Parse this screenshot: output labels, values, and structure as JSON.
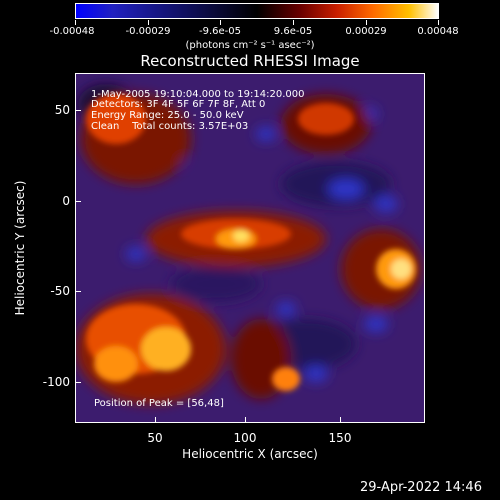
{
  "colorbar": {
    "ticks": [
      "-0.00048",
      "-0.00029",
      "-9.6e-05",
      "9.6e-05",
      "0.00029",
      "0.00048"
    ],
    "units": "(photons cm⁻² s⁻¹ asec⁻²)"
  },
  "plot": {
    "title": "Reconstructed RHESSI Image",
    "xlabel": "Heliocentric X (arcsec)",
    "ylabel": "Heliocentric Y (arcsec)",
    "xticks": [
      "50",
      "100",
      "150"
    ],
    "yticks": [
      "50",
      "0",
      "-50",
      "-100"
    ],
    "info": [
      "1-May-2005 19:10:04.000 to 19:14:20.000",
      "Detectors: 3F 4F 5F 6F 7F 8F, Att 0",
      "Energy Range: 25.0 - 50.0 keV",
      "Clean    Total counts: 3.57E+03"
    ],
    "peak": "Position of Peak = [56,48]"
  },
  "timestamp": "29-Apr-2022 14:46"
}
